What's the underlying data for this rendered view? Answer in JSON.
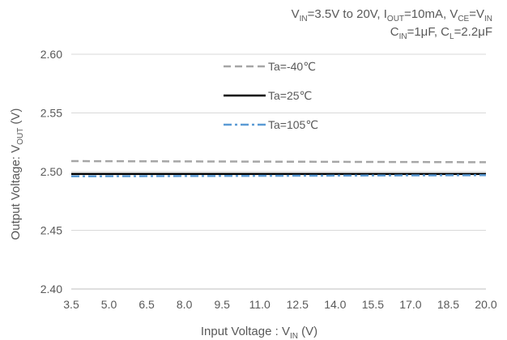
{
  "chart_data": {
    "type": "line",
    "conditions": {
      "line1": {
        "v": "V",
        "vin_sub": "IN",
        "p1": "=3.5V to 20V, ",
        "i": "I",
        "iout_sub": "OUT",
        "p2": "=10mA, ",
        "v2": "V",
        "vce_sub": "CE",
        "p3": "=V",
        "vin2_sub": "IN"
      },
      "line2": {
        "c": "C",
        "cin_sub": "IN",
        "p1": "=1μF, ",
        "c2": "C",
        "cl_sub": "L",
        "p2": "=2.2μF"
      }
    },
    "xlabel": {
      "main": "Input Voltage : V",
      "sub": "IN",
      "unit": " (V)"
    },
    "ylabel": {
      "main": "Output Voltage: V",
      "sub": "OUT",
      "unit": " (V)"
    },
    "x_ticks": [
      "3.5",
      "5.0",
      "6.5",
      "8.0",
      "9.5",
      "11.0",
      "12.5",
      "14.0",
      "15.5",
      "17.0",
      "18.5",
      "20.0"
    ],
    "y_ticks": [
      "2.40",
      "2.45",
      "2.50",
      "2.55",
      "2.60"
    ],
    "xlim": [
      3.5,
      20.0
    ],
    "ylim": [
      2.4,
      2.6
    ],
    "grid": "horizontal",
    "legend_position": "top-center",
    "series": [
      {
        "name": "Ta=-40℃",
        "color": "#a6a6a6",
        "style": "dashed",
        "x": [
          3.5,
          20.0
        ],
        "y": [
          2.509,
          2.508
        ]
      },
      {
        "name": "Ta=25℃",
        "color": "#000000",
        "style": "solid",
        "x": [
          3.5,
          20.0
        ],
        "y": [
          2.498,
          2.498
        ]
      },
      {
        "name": "Ta=105℃",
        "color": "#5b9bd5",
        "style": "dashdot",
        "x": [
          3.5,
          20.0
        ],
        "y": [
          2.496,
          2.497
        ]
      }
    ]
  }
}
